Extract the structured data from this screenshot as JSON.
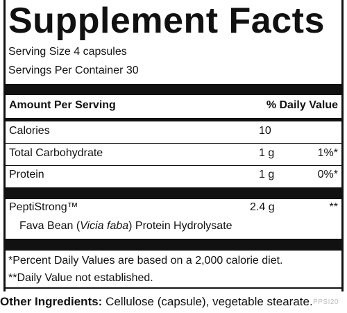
{
  "title": "Supplement Facts",
  "serving_size": "Serving Size 4 capsules",
  "servings_per_container": "Servings Per Container 30",
  "header": {
    "amount_per_serving": "Amount Per Serving",
    "daily_value": "% Daily Value"
  },
  "rows": [
    {
      "name": "Calories",
      "amount": "10",
      "dv": ""
    },
    {
      "name": "Total Carbohydrate",
      "amount": "1 g",
      "dv": "1%*"
    },
    {
      "name": "Protein",
      "amount": "1 g",
      "dv": "0%*"
    }
  ],
  "ingredient": {
    "name": "PeptiStrong™",
    "amount": "2.4 g",
    "dv": "**",
    "sub_prefix": "Fava Bean (",
    "sub_latin": "Vicia faba",
    "sub_suffix": ") Protein Hydrolysate"
  },
  "footnotes": [
    "*Percent Daily Values are based on a 2,000 calorie diet.",
    "**Daily Value not established."
  ],
  "other_ingredients": {
    "label": "Other Ingredients:",
    "text": " Cellulose (capsule), vegetable stearate."
  },
  "code": "PPSI20"
}
